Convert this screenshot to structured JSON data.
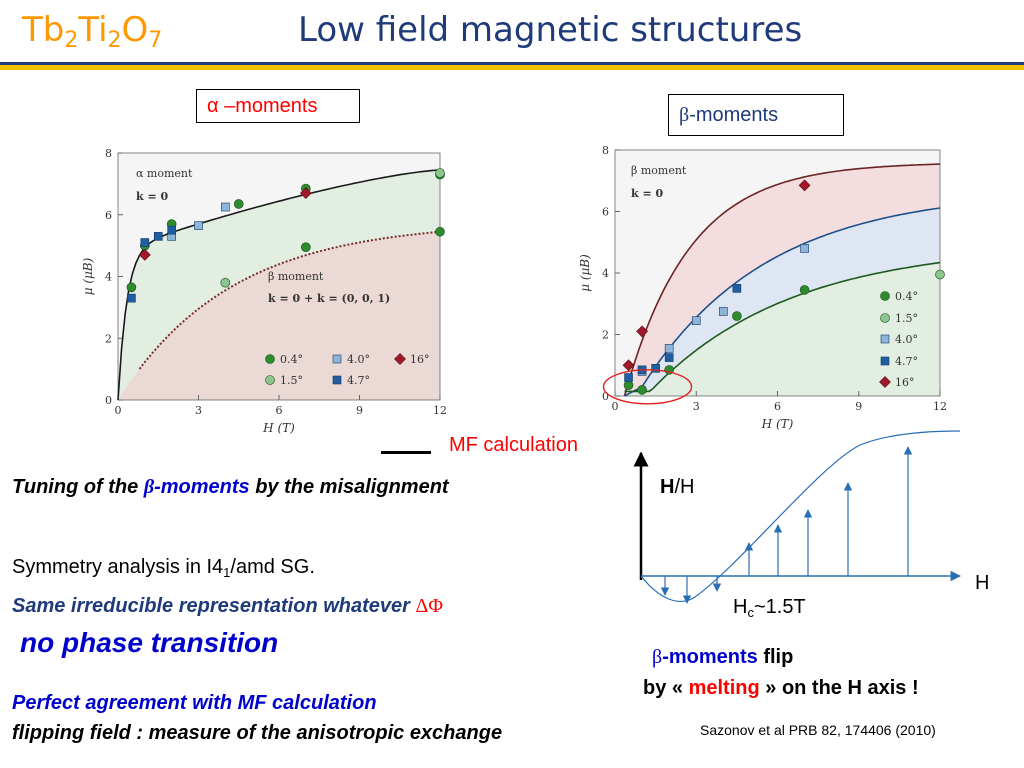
{
  "header": {
    "formula_parts": [
      "Tb",
      "2",
      "Ti",
      "2",
      "O",
      "7"
    ],
    "title": "Low field magnetic  structures"
  },
  "labels": {
    "alpha_moments": "α –moments",
    "beta_symbol": "β",
    "beta_moments": "-moments",
    "mf_calculation": "MF calculation"
  },
  "text": {
    "tuning_pre": "Tuning of the ",
    "tuning_beta": "β",
    "tuning_mid": "-moments",
    "tuning_post": " by the misalignment",
    "symmetry_pre": "Symmetry analysis  in I4",
    "symmetry_sub": "1",
    "symmetry_post": "/amd   SG.",
    "irrep": "Same irreducible representation whatever ",
    "irrep_delta": "ΔΦ",
    "no_transition": "no phase transition",
    "agreement": "Perfect agreement with MF calculation",
    "flipping": " flipping field : measure of the anisotropic exchange",
    "flip_beta": "β",
    "flip_moments": "-moments",
    "flip_word": "  flip",
    "melting_pre": "by « ",
    "melting": "melting",
    "melting_post": " » on the H axis !",
    "reference": "Sazonov et al PRB 82, 174406 (2010)"
  },
  "schematic": {
    "y_label_bold": "H",
    "y_label_rest": "/H",
    "x_label": "H",
    "hc_pre": "H",
    "hc_sub": "c",
    "hc_post": "~1.5T"
  },
  "chart_data": [
    {
      "type": "scatter",
      "title": "",
      "xlabel": "H (T)",
      "ylabel": "μ (μB)",
      "xlim": [
        0,
        12
      ],
      "ylim": [
        0,
        8
      ],
      "xticks": [
        "0",
        "3",
        "6",
        "9",
        "12"
      ],
      "yticks": [
        "0",
        "2",
        "4",
        "6",
        "8"
      ],
      "annotations": [
        "α moment",
        "k = 0",
        "β moment",
        "k = 0  +  k = (0, 0, 1)"
      ],
      "legend": [
        "0.4°",
        "1.5°",
        "4.0°",
        "4.7°",
        "16°"
      ],
      "colors": {
        "0.4": "#2e8b2e",
        "1.5": "#8cc68c",
        "4.0": "#8fb4d9",
        "4.7": "#1f5fa0",
        "16": "#a0192a"
      },
      "series": [
        {
          "name": "0.4°",
          "marker": "circle",
          "color": "#2e8b2e",
          "x": [
            0.5,
            1.0,
            2.0,
            4.5,
            7.0,
            12.0,
            7.0,
            12.0
          ],
          "y": [
            3.65,
            5.0,
            5.7,
            6.35,
            6.85,
            7.3,
            4.95,
            5.45
          ]
        },
        {
          "name": "1.5°",
          "marker": "circle",
          "color": "#8cc68c",
          "x": [
            4.0,
            12.0
          ],
          "y": [
            3.8,
            7.35
          ]
        },
        {
          "name": "4.0°",
          "marker": "square",
          "color": "#8fb4d9",
          "x": [
            2.0,
            3.0,
            4.0
          ],
          "y": [
            5.3,
            5.65,
            6.25
          ]
        },
        {
          "name": "4.7°",
          "marker": "square",
          "color": "#1f5fa0",
          "x": [
            0.5,
            1.0,
            1.5,
            2.0
          ],
          "y": [
            3.3,
            5.1,
            5.3,
            5.5
          ]
        },
        {
          "name": "16°",
          "marker": "diamond",
          "color": "#a0192a",
          "x": [
            1.0,
            7.0
          ],
          "y": [
            4.7,
            6.7
          ]
        }
      ]
    },
    {
      "type": "scatter",
      "title": "",
      "xlabel": "H (T)",
      "ylabel": "μ (μB)",
      "xlim": [
        0,
        12
      ],
      "ylim": [
        0,
        8
      ],
      "xticks": [
        "0",
        "3",
        "6",
        "9",
        "12"
      ],
      "yticks": [
        "0",
        "2",
        "4",
        "6",
        "8"
      ],
      "annotations": [
        "β moment",
        "k = 0"
      ],
      "legend": [
        "0.4°",
        "1.5°",
        "4.0°",
        "4.7°",
        "16°"
      ],
      "colors": {
        "0.4": "#2e8b2e",
        "1.5": "#8cc68c",
        "4.0": "#8fb4d9",
        "4.7": "#1f5fa0",
        "16": "#a0192a"
      },
      "series": [
        {
          "name": "0.4°",
          "marker": "circle",
          "color": "#2e8b2e",
          "x": [
            0.5,
            1.0,
            2.0,
            4.5,
            7.0
          ],
          "y": [
            0.35,
            0.2,
            0.85,
            2.6,
            3.45
          ]
        },
        {
          "name": "1.5°",
          "marker": "circle",
          "color": "#8cc68c",
          "x": [
            12.0
          ],
          "y": [
            3.95
          ]
        },
        {
          "name": "4.0°",
          "marker": "square",
          "color": "#8fb4d9",
          "x": [
            1.0,
            2.0,
            3.0,
            4.0,
            7.0
          ],
          "y": [
            0.8,
            1.55,
            2.45,
            2.75,
            4.8
          ]
        },
        {
          "name": "4.7°",
          "marker": "square",
          "color": "#1f5fa0",
          "x": [
            0.5,
            1.0,
            1.5,
            2.0,
            4.5
          ],
          "y": [
            0.6,
            0.85,
            0.9,
            1.25,
            3.5
          ]
        },
        {
          "name": "16°",
          "marker": "diamond",
          "color": "#a0192a",
          "x": [
            0.5,
            1.0,
            7.0
          ],
          "y": [
            1.0,
            2.1,
            6.85
          ]
        }
      ]
    }
  ]
}
